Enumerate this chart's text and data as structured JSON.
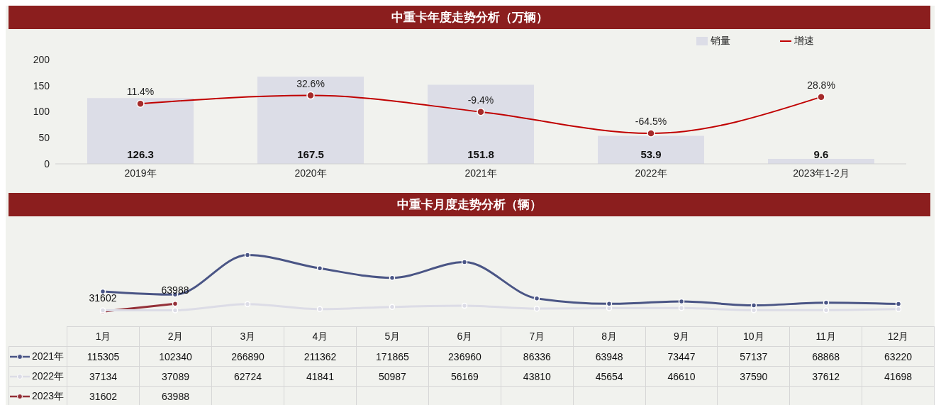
{
  "chart_data": [
    {
      "type": "bar",
      "title": "中重卡年度走势分析（万辆）",
      "categories": [
        "2019年",
        "2020年",
        "2021年",
        "2022年",
        "2023年1-2月"
      ],
      "series": [
        {
          "name": "销量",
          "color": "#dcdde7",
          "values": [
            126.3,
            167.5,
            151.8,
            53.9,
            9.6
          ]
        },
        {
          "name": "增速",
          "type": "line",
          "axis": "y2",
          "color": "#c00000",
          "values": [
            11.4,
            32.6,
            -9.4,
            -64.5,
            28.8
          ],
          "value_labels": [
            "11.4%",
            "32.6%",
            "-9.4%",
            "-64.5%",
            "28.8%"
          ]
        }
      ],
      "ylim": [
        0,
        200
      ],
      "yticks": [
        0,
        50,
        100,
        150,
        200
      ],
      "data_labels": true,
      "legend": "top right",
      "marker": "circle"
    },
    {
      "type": "line",
      "title": "中重卡月度走势分析（辆）",
      "categories": [
        "1月",
        "2月",
        "3月",
        "4月",
        "5月",
        "6月",
        "7月",
        "8月",
        "9月",
        "10月",
        "11月",
        "12月"
      ],
      "series": [
        {
          "name": "2021年",
          "color": "#4a5585",
          "values": [
            115305,
            102340,
            266890,
            211362,
            171865,
            236960,
            86336,
            63948,
            73447,
            57137,
            68868,
            63220
          ]
        },
        {
          "name": "2022年",
          "color": "#dcdce6",
          "values": [
            37134,
            37089,
            62724,
            41841,
            50987,
            56169,
            43810,
            45654,
            46610,
            37590,
            37612,
            41698
          ]
        },
        {
          "name": "2023年",
          "color": "#943038",
          "values": [
            31602,
            63988,
            null,
            null,
            null,
            null,
            null,
            null,
            null,
            null,
            null,
            null
          ]
        }
      ],
      "annotations": [
        {
          "text": "31602",
          "x": "1月",
          "y": 31602
        },
        {
          "text": "63988",
          "x": "2月",
          "y": 63988
        }
      ],
      "tick_labels": "x",
      "data_labels": true,
      "legend": "left",
      "marker": "circle",
      "line_style": "solid"
    }
  ]
}
